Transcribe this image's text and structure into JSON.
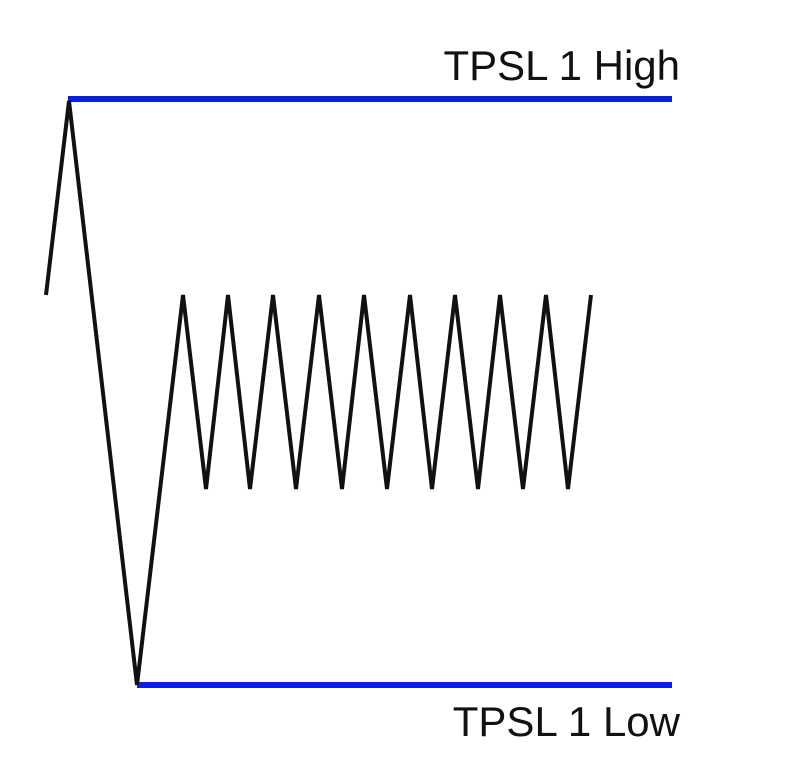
{
  "diagram": {
    "levels": [
      {
        "id": "high",
        "label": "TPSL 1 High"
      },
      {
        "id": "low",
        "label": "TPSL 1 Low"
      }
    ]
  },
  "colors": {
    "level_line": "#0a1fe0",
    "price_line": "#111111",
    "background": "#ffffff"
  }
}
